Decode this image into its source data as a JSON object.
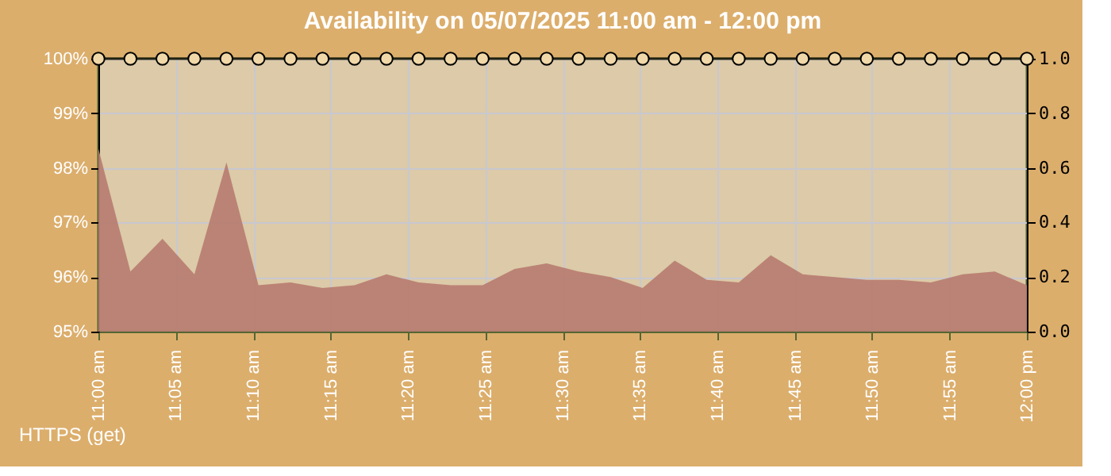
{
  "chart_data": {
    "type": "line",
    "title": "Availability on 05/07/2025 11:00 am - 12:00 pm",
    "x": [
      11.0,
      11.0345,
      11.069,
      11.1034,
      11.1379,
      11.1724,
      11.2069,
      11.2414,
      11.2759,
      11.3103,
      11.3448,
      11.3793,
      11.4138,
      11.4483,
      11.4828,
      11.5172,
      11.5517,
      11.5862,
      11.6207,
      11.6552,
      11.6897,
      11.7241,
      11.7586,
      11.7931,
      11.8276,
      11.8621,
      11.8966,
      11.931,
      11.9655,
      12.0
    ],
    "series": [
      {
        "type": "area",
        "axis": "y2",
        "color": "#b87e72",
        "values": [
          0.67,
          0.22,
          0.34,
          0.21,
          0.62,
          0.17,
          0.18,
          0.16,
          0.17,
          0.21,
          0.18,
          0.17,
          0.17,
          0.23,
          0.25,
          0.22,
          0.2,
          0.16,
          0.26,
          0.19,
          0.18,
          0.28,
          0.21,
          0.2,
          0.19,
          0.19,
          0.18,
          0.21,
          0.22,
          0.17
        ]
      },
      {
        "color": "#222211",
        "marker": "circle",
        "values": [
          100,
          100,
          100,
          100,
          100,
          100,
          100,
          100,
          100,
          100,
          100,
          100,
          100,
          100,
          100,
          100,
          100,
          100,
          100,
          100,
          100,
          100,
          100,
          100,
          100,
          100,
          100,
          100,
          100,
          100
        ]
      }
    ],
    "xlim": [
      11,
      12
    ],
    "xticks": [
      {
        "value": 11.0,
        "label": "11:00 am"
      },
      {
        "value": 11.0833,
        "label": "11:05 am"
      },
      {
        "value": 11.1667,
        "label": "11:10 am"
      },
      {
        "value": 11.25,
        "label": "11:15 am"
      },
      {
        "value": 11.3333,
        "label": "11:20 am"
      },
      {
        "value": 11.4167,
        "label": "11:25 am"
      },
      {
        "value": 11.5,
        "label": "11:30 am"
      },
      {
        "value": 11.5833,
        "label": "11:35 am"
      },
      {
        "value": 11.6667,
        "label": "11:40 am"
      },
      {
        "value": 11.75,
        "label": "11:45 am"
      },
      {
        "value": 11.8333,
        "label": "11:50 am"
      },
      {
        "value": 11.9167,
        "label": "11:55 am"
      },
      {
        "value": 12.0,
        "label": "12:00 pm"
      }
    ],
    "ylim": [
      95,
      100
    ],
    "yticks": [
      {
        "value": 95,
        "label": "95%"
      },
      {
        "value": 96,
        "label": "96%"
      },
      {
        "value": 97,
        "label": "97%"
      },
      {
        "value": 98,
        "label": "98%"
      },
      {
        "value": 99,
        "label": "99%"
      },
      {
        "value": 100,
        "label": "100%"
      }
    ],
    "y2lim": [
      0,
      1
    ],
    "y2ticks": [
      {
        "value": 0,
        "label": "0.0"
      },
      {
        "value": 0.2,
        "label": "0.2"
      },
      {
        "value": 0.4,
        "label": "0.4"
      },
      {
        "value": 0.6,
        "label": "0.6"
      },
      {
        "value": 0.8,
        "label": "0.8"
      },
      {
        "value": 1.0,
        "label": "1.0"
      }
    ],
    "grid": true,
    "annotations": [
      "HTTPS (get)"
    ]
  }
}
